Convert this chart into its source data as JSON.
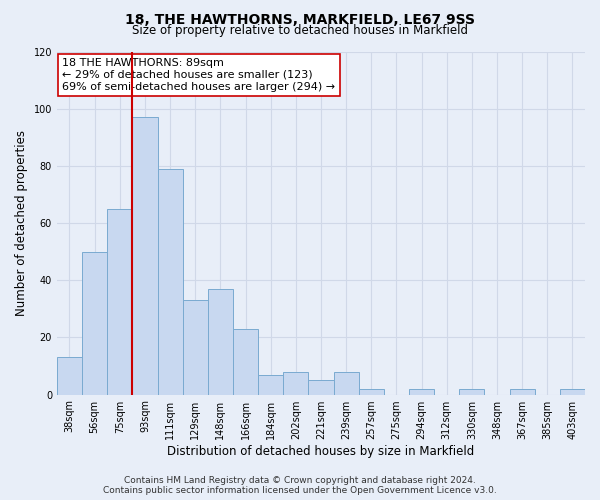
{
  "title": "18, THE HAWTHORNS, MARKFIELD, LE67 9SS",
  "subtitle": "Size of property relative to detached houses in Markfield",
  "xlabel": "Distribution of detached houses by size in Markfield",
  "ylabel": "Number of detached properties",
  "bar_color": "#c8d8f0",
  "bar_edge_color": "#7aaad0",
  "categories": [
    "38sqm",
    "56sqm",
    "75sqm",
    "93sqm",
    "111sqm",
    "129sqm",
    "148sqm",
    "166sqm",
    "184sqm",
    "202sqm",
    "221sqm",
    "239sqm",
    "257sqm",
    "275sqm",
    "294sqm",
    "312sqm",
    "330sqm",
    "348sqm",
    "367sqm",
    "385sqm",
    "403sqm"
  ],
  "values": [
    13,
    50,
    65,
    97,
    79,
    33,
    37,
    23,
    7,
    8,
    5,
    8,
    2,
    0,
    2,
    0,
    2,
    0,
    2,
    0,
    2
  ],
  "vline_x_index": 2.5,
  "annotation_text_line1": "18 THE HAWTHORNS: 89sqm",
  "annotation_text_line2": "← 29% of detached houses are smaller (123)",
  "annotation_text_line3": "69% of semi-detached houses are larger (294) →",
  "vline_color": "#cc0000",
  "annotation_box_edge_color": "#cc0000",
  "annotation_box_face_color": "#ffffff",
  "footer_line1": "Contains HM Land Registry data © Crown copyright and database right 2024.",
  "footer_line2": "Contains public sector information licensed under the Open Government Licence v3.0.",
  "ylim": [
    0,
    120
  ],
  "yticks": [
    0,
    20,
    40,
    60,
    80,
    100,
    120
  ],
  "background_color": "#e8eef8",
  "grid_color": "#d0d8e8",
  "title_fontsize": 10,
  "subtitle_fontsize": 8.5,
  "axis_label_fontsize": 8.5,
  "tick_fontsize": 7,
  "annotation_fontsize": 8,
  "footer_fontsize": 6.5
}
